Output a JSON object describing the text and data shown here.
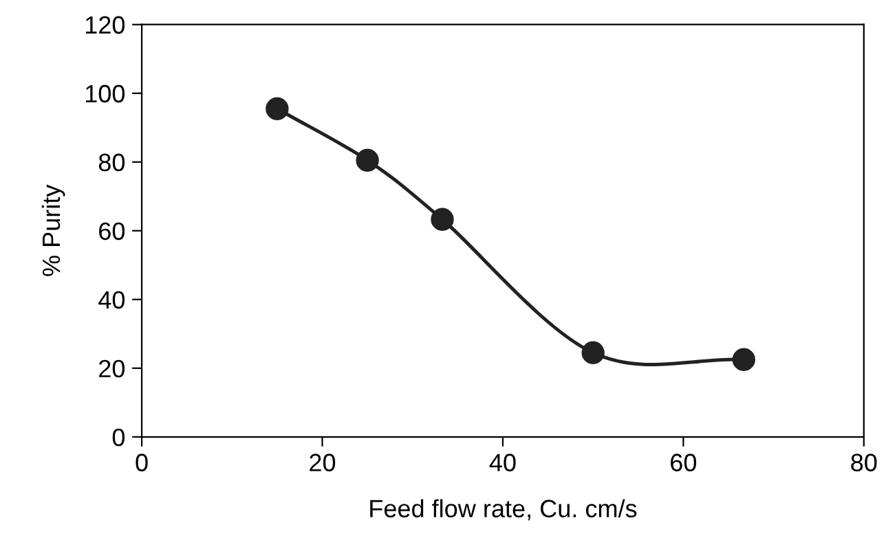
{
  "chart_data": {
    "type": "line",
    "xlabel": "Feed flow rate, Cu. cm/s",
    "ylabel": "% Purity",
    "x": [
      15,
      25,
      33.3,
      50,
      66.7
    ],
    "series": [
      {
        "color": "#222222",
        "values": [
          95.5,
          80.5,
          63.3,
          24.5,
          22.5
        ]
      }
    ],
    "xlim": [
      0,
      80
    ],
    "xticks": [
      0,
      20,
      40,
      60,
      80
    ],
    "ylim": [
      0,
      120
    ],
    "yticks": [
      0,
      20,
      40,
      60,
      80,
      100,
      120
    ],
    "grid": false,
    "legend": false,
    "marker": "circle",
    "line_style": "solid"
  }
}
